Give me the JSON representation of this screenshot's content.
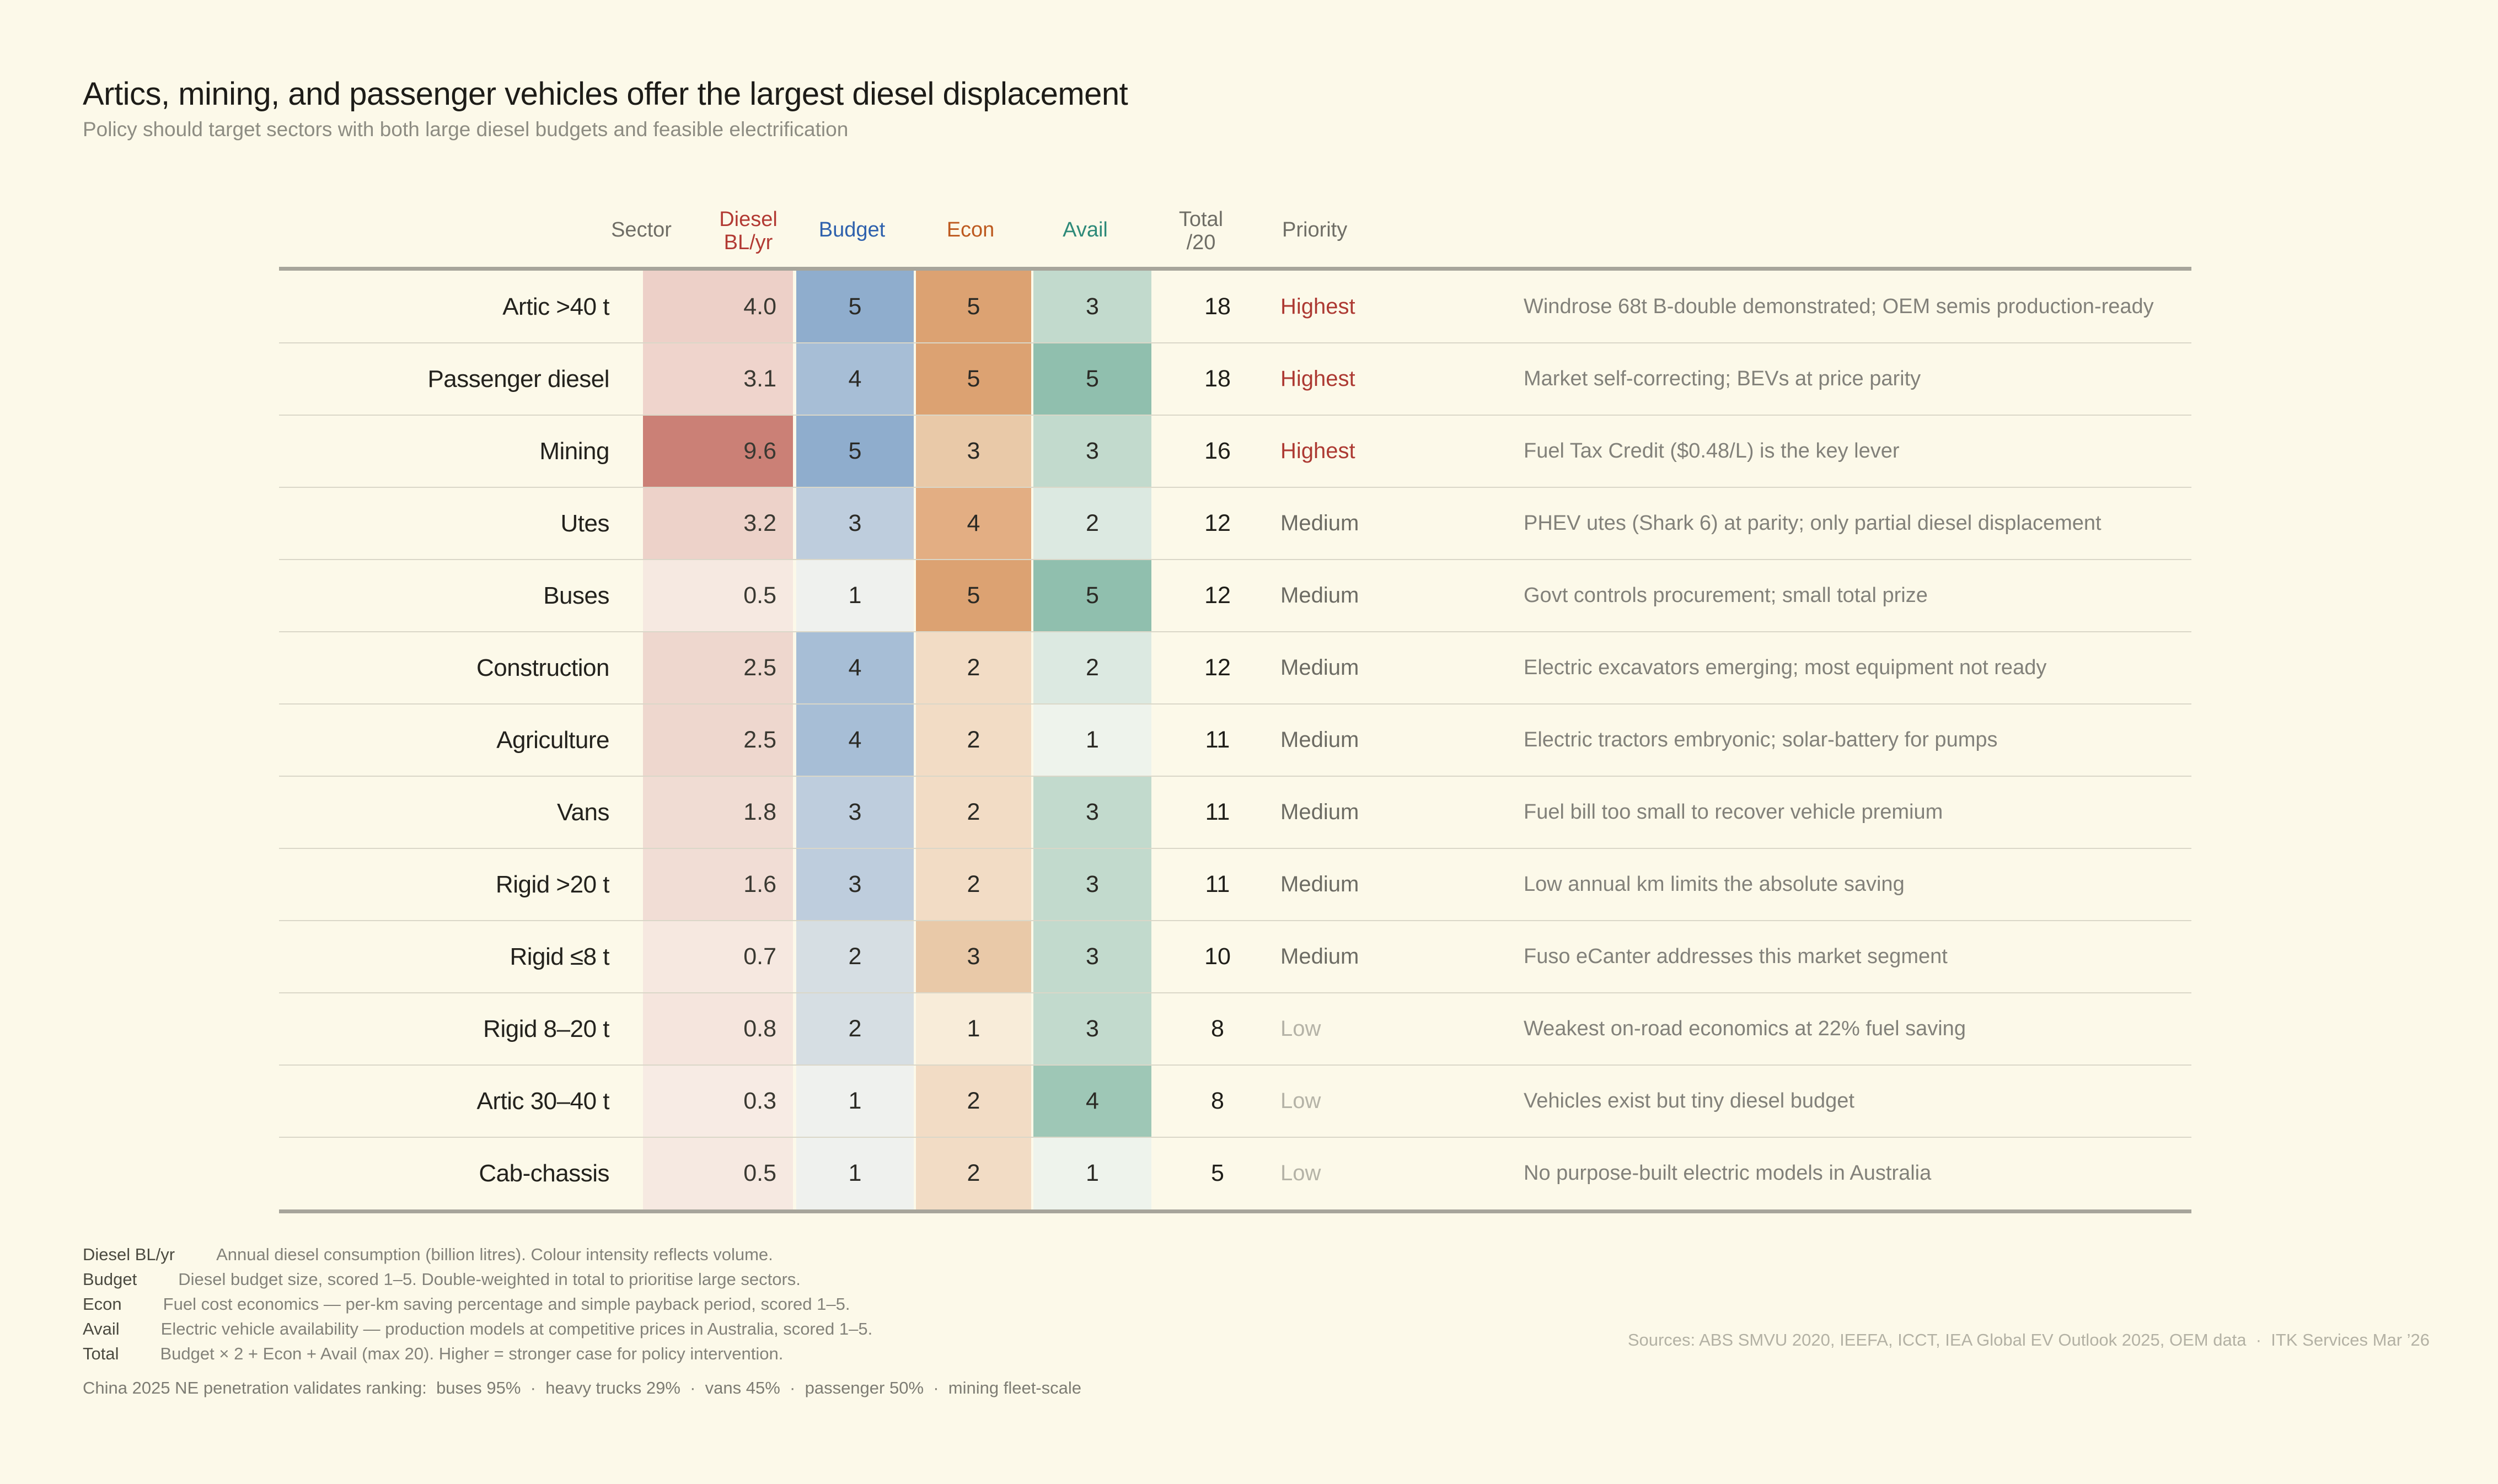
{
  "page": {
    "background": "#fcf9e9"
  },
  "header": {
    "title": "Artics, mining, and passenger vehicles offer the largest diesel displacement",
    "subtitle": "Policy should target sectors with both large diesel budgets and feasible electrification"
  },
  "table": {
    "columns": {
      "sector": {
        "label": "Sector",
        "color": "#6f6e66"
      },
      "diesel": {
        "label": "Diesel\nBL/yr",
        "color": "#b23a33"
      },
      "budget": {
        "label": "Budget",
        "color": "#2e61ad"
      },
      "econ": {
        "label": "Econ",
        "color": "#bd5a1f"
      },
      "avail": {
        "label": "Avail",
        "color": "#2e8a79"
      },
      "total": {
        "label": "Total\n/20",
        "color": "#6f6e66"
      },
      "priority": {
        "label": "Priority",
        "color": "#6f6e66"
      }
    },
    "priority_colors": {
      "Highest": "#ad3a33",
      "Medium": "#6c6b63",
      "Low": "#b5b3a7"
    },
    "scales": {
      "budget": [
        "#eff1ee",
        "#d6dee3",
        "#becddd",
        "#a7bed6",
        "#8fadcd"
      ],
      "econ": [
        "#f8ecd9",
        "#f2dcc5",
        "#e9c9a8",
        "#e3ae83",
        "#dca272"
      ],
      "avail": [
        "#eef3ec",
        "#dce9e1",
        "#c2dacd",
        "#9ec7b6",
        "#90bfae"
      ]
    },
    "rows": [
      {
        "sector": "Artic >40 t",
        "diesel": "4.0",
        "diesel_color": "#edd0c8",
        "budget": 5,
        "econ": 5,
        "avail": 3,
        "total": 18,
        "priority": "Highest",
        "note": "Windrose 68t B-double demonstrated; OEM semis production-ready"
      },
      {
        "sector": "Passenger diesel",
        "diesel": "3.1",
        "diesel_color": "#efd4cc",
        "budget": 4,
        "econ": 5,
        "avail": 5,
        "total": 18,
        "priority": "Highest",
        "note": "Market self-correcting; BEVs at price parity"
      },
      {
        "sector": "Mining",
        "diesel": "9.6",
        "diesel_color": "#cb8076",
        "budget": 5,
        "econ": 3,
        "avail": 3,
        "total": 16,
        "priority": "Highest",
        "note": "Fuel Tax Credit ($0.48/L) is the key lever"
      },
      {
        "sector": "Utes",
        "diesel": "3.2",
        "diesel_color": "#edd2c9",
        "budget": 3,
        "econ": 4,
        "avail": 2,
        "total": 12,
        "priority": "Medium",
        "note": "PHEV utes (Shark 6) at parity; only partial diesel displacement"
      },
      {
        "sector": "Buses",
        "diesel": "0.5",
        "diesel_color": "#f6e9e1",
        "budget": 1,
        "econ": 5,
        "avail": 5,
        "total": 12,
        "priority": "Medium",
        "note": "Govt controls procurement; small total prize"
      },
      {
        "sector": "Construction",
        "diesel": "2.5",
        "diesel_color": "#eed7ce",
        "budget": 4,
        "econ": 2,
        "avail": 2,
        "total": 12,
        "priority": "Medium",
        "note": "Electric excavators emerging; most equipment not ready"
      },
      {
        "sector": "Agriculture",
        "diesel": "2.5",
        "diesel_color": "#eed7ce",
        "budget": 4,
        "econ": 2,
        "avail": 1,
        "total": 11,
        "priority": "Medium",
        "note": "Electric tractors embryonic; solar-battery for pumps"
      },
      {
        "sector": "Vans",
        "diesel": "1.8",
        "diesel_color": "#f0dcd3",
        "budget": 3,
        "econ": 2,
        "avail": 3,
        "total": 11,
        "priority": "Medium",
        "note": "Fuel bill too small to recover vehicle premium"
      },
      {
        "sector": "Rigid >20 t",
        "diesel": "1.6",
        "diesel_color": "#f1ddd5",
        "budget": 3,
        "econ": 2,
        "avail": 3,
        "total": 11,
        "priority": "Medium",
        "note": "Low annual km limits the absolute saving"
      },
      {
        "sector": "Rigid ≤8 t",
        "diesel": "0.7",
        "diesel_color": "#f6e8e0",
        "budget": 2,
        "econ": 3,
        "avail": 3,
        "total": 10,
        "priority": "Medium",
        "note": "Fuso eCanter addresses this market segment"
      },
      {
        "sector": "Rigid 8–20 t",
        "diesel": "0.8",
        "diesel_color": "#f5e5dd",
        "budget": 2,
        "econ": 1,
        "avail": 3,
        "total": 8,
        "priority": "Low",
        "note": "Weakest on-road economics at 22% fuel saving"
      },
      {
        "sector": "Artic 30–40 t",
        "diesel": "0.3",
        "diesel_color": "#f7ebe4",
        "budget": 1,
        "econ": 2,
        "avail": 4,
        "total": 8,
        "priority": "Low",
        "note": "Vehicles exist but tiny diesel budget"
      },
      {
        "sector": "Cab-chassis",
        "diesel": "0.5",
        "diesel_color": "#f6e9e1",
        "budget": 1,
        "econ": 2,
        "avail": 1,
        "total": 5,
        "priority": "Low",
        "note": "No purpose-built electric models in Australia"
      }
    ]
  },
  "legend": [
    {
      "term": "Diesel BL/yr",
      "definition": "Annual diesel consumption (billion litres). Colour intensity reflects volume."
    },
    {
      "term": "Budget",
      "definition": "Diesel budget size, scored 1–5. Double-weighted in total to prioritise large sectors."
    },
    {
      "term": "Econ",
      "definition": "Fuel cost economics — per-km saving percentage and simple payback period, scored 1–5."
    },
    {
      "term": "Avail",
      "definition": "Electric vehicle availability — production models at competitive prices in Australia, scored 1–5."
    },
    {
      "term": "Total",
      "definition": "Budget × 2 + Econ + Avail (max 20). Higher = stronger case for policy intervention."
    }
  ],
  "footer": {
    "sources": "Sources: ABS SMVU 2020, IEEFA, ICCT, IEA Global EV Outlook 2025, OEM data  ·  ITK Services Mar ’26",
    "validation": "China 2025 NE penetration validates ranking:  buses 95%  ·  heavy trucks 29%  ·  vans 45%  ·  passenger 50%  ·  mining fleet-scale"
  },
  "chart_data": {
    "type": "heatmap",
    "title": "Artics, mining, and passenger vehicles offer the largest diesel displacement",
    "subtitle": "Policy should target sectors with both large diesel budgets and feasible electrification",
    "columns": [
      "Diesel BL/yr",
      "Budget",
      "Econ",
      "Avail",
      "Total /20",
      "Priority"
    ],
    "rows": [
      "Artic >40 t",
      "Passenger diesel",
      "Mining",
      "Utes",
      "Buses",
      "Construction",
      "Agriculture",
      "Vans",
      "Rigid >20 t",
      "Rigid ≤8 t",
      "Rigid 8–20 t",
      "Artic 30–40 t",
      "Cab-chassis"
    ],
    "values": [
      [
        4.0,
        5,
        5,
        3,
        18,
        "Highest"
      ],
      [
        3.1,
        4,
        5,
        5,
        18,
        "Highest"
      ],
      [
        9.6,
        5,
        3,
        3,
        16,
        "Highest"
      ],
      [
        3.2,
        3,
        4,
        2,
        12,
        "Medium"
      ],
      [
        0.5,
        1,
        5,
        5,
        12,
        "Medium"
      ],
      [
        2.5,
        4,
        2,
        2,
        12,
        "Medium"
      ],
      [
        2.5,
        4,
        2,
        1,
        11,
        "Medium"
      ],
      [
        1.8,
        3,
        2,
        3,
        11,
        "Medium"
      ],
      [
        1.6,
        3,
        2,
        3,
        11,
        "Medium"
      ],
      [
        0.7,
        2,
        3,
        3,
        10,
        "Medium"
      ],
      [
        0.8,
        2,
        1,
        3,
        8,
        "Low"
      ],
      [
        0.3,
        1,
        2,
        4,
        8,
        "Low"
      ],
      [
        0.5,
        1,
        2,
        1,
        5,
        "Low"
      ]
    ],
    "score_range": [
      1,
      5
    ],
    "total_formula": "Budget × 2 + Econ + Avail (max 20)",
    "legend_position": "bottom-left",
    "grid": "horizontal-rules"
  }
}
